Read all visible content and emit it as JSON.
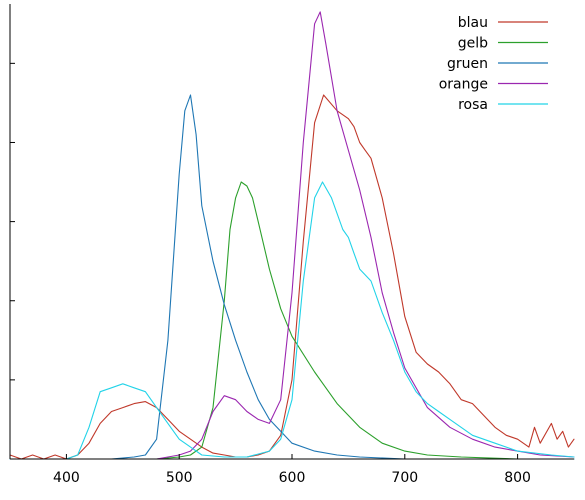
{
  "chart_data": {
    "type": "line",
    "title": "",
    "xlabel": "",
    "ylabel": "",
    "xlim": [
      350,
      850
    ],
    "ylim": [
      0,
      1.15
    ],
    "x_ticks": [
      400,
      500,
      600,
      700,
      800
    ],
    "x_tick_labels": [
      "400",
      "500",
      "600",
      "700",
      "800"
    ],
    "y_ticks": [
      0.2,
      0.4,
      0.6,
      0.8,
      1.0
    ],
    "grid": false,
    "legend_position": "top-right",
    "series": [
      {
        "name": "blau",
        "color": "#c0392b",
        "points": [
          [
            350,
            0.01
          ],
          [
            360,
            0.0
          ],
          [
            370,
            0.01
          ],
          [
            380,
            0.0
          ],
          [
            390,
            0.01
          ],
          [
            400,
            0.0
          ],
          [
            410,
            0.01
          ],
          [
            420,
            0.04
          ],
          [
            430,
            0.09
          ],
          [
            440,
            0.12
          ],
          [
            450,
            0.13
          ],
          [
            460,
            0.14
          ],
          [
            470,
            0.145
          ],
          [
            480,
            0.13
          ],
          [
            490,
            0.1
          ],
          [
            500,
            0.07
          ],
          [
            510,
            0.05
          ],
          [
            520,
            0.03
          ],
          [
            530,
            0.015
          ],
          [
            540,
            0.01
          ],
          [
            550,
            0.005
          ],
          [
            560,
            0.005
          ],
          [
            570,
            0.01
          ],
          [
            580,
            0.02
          ],
          [
            590,
            0.06
          ],
          [
            600,
            0.2
          ],
          [
            610,
            0.55
          ],
          [
            620,
            0.85
          ],
          [
            628,
            0.92
          ],
          [
            640,
            0.88
          ],
          [
            650,
            0.86
          ],
          [
            655,
            0.84
          ],
          [
            660,
            0.8
          ],
          [
            665,
            0.78
          ],
          [
            670,
            0.76
          ],
          [
            680,
            0.66
          ],
          [
            690,
            0.52
          ],
          [
            700,
            0.36
          ],
          [
            710,
            0.27
          ],
          [
            720,
            0.24
          ],
          [
            725,
            0.23
          ],
          [
            730,
            0.22
          ],
          [
            740,
            0.19
          ],
          [
            750,
            0.15
          ],
          [
            760,
            0.14
          ],
          [
            770,
            0.11
          ],
          [
            780,
            0.08
          ],
          [
            790,
            0.06
          ],
          [
            800,
            0.05
          ],
          [
            810,
            0.03
          ],
          [
            815,
            0.08
          ],
          [
            820,
            0.04
          ],
          [
            830,
            0.09
          ],
          [
            835,
            0.05
          ],
          [
            840,
            0.07
          ],
          [
            845,
            0.03
          ],
          [
            850,
            0.05
          ]
        ]
      },
      {
        "name": "gelb",
        "color": "#2ca02c",
        "points": [
          [
            350,
            0.0
          ],
          [
            400,
            0.0
          ],
          [
            450,
            0.0
          ],
          [
            480,
            0.0
          ],
          [
            500,
            0.005
          ],
          [
            510,
            0.01
          ],
          [
            520,
            0.03
          ],
          [
            530,
            0.13
          ],
          [
            540,
            0.4
          ],
          [
            545,
            0.58
          ],
          [
            550,
            0.66
          ],
          [
            555,
            0.7
          ],
          [
            560,
            0.69
          ],
          [
            565,
            0.66
          ],
          [
            570,
            0.6
          ],
          [
            580,
            0.48
          ],
          [
            590,
            0.38
          ],
          [
            600,
            0.31
          ],
          [
            620,
            0.22
          ],
          [
            640,
            0.14
          ],
          [
            660,
            0.08
          ],
          [
            680,
            0.04
          ],
          [
            700,
            0.02
          ],
          [
            720,
            0.01
          ],
          [
            750,
            0.005
          ],
          [
            800,
            0.0
          ],
          [
            850,
            0.0
          ]
        ]
      },
      {
        "name": "gruen",
        "color": "#1f77b4",
        "points": [
          [
            350,
            0.0
          ],
          [
            400,
            0.0
          ],
          [
            440,
            0.0
          ],
          [
            460,
            0.005
          ],
          [
            470,
            0.01
          ],
          [
            480,
            0.05
          ],
          [
            490,
            0.3
          ],
          [
            500,
            0.72
          ],
          [
            505,
            0.88
          ],
          [
            510,
            0.92
          ],
          [
            515,
            0.82
          ],
          [
            520,
            0.64
          ],
          [
            530,
            0.5
          ],
          [
            540,
            0.39
          ],
          [
            550,
            0.3
          ],
          [
            560,
            0.22
          ],
          [
            570,
            0.15
          ],
          [
            580,
            0.1
          ],
          [
            590,
            0.07
          ],
          [
            600,
            0.04
          ],
          [
            620,
            0.02
          ],
          [
            640,
            0.01
          ],
          [
            660,
            0.005
          ],
          [
            700,
            0.0
          ],
          [
            850,
            0.0
          ]
        ]
      },
      {
        "name": "orange",
        "color": "#9b27b0",
        "points": [
          [
            350,
            0.0
          ],
          [
            400,
            0.0
          ],
          [
            450,
            0.0
          ],
          [
            480,
            0.0
          ],
          [
            500,
            0.01
          ],
          [
            510,
            0.02
          ],
          [
            520,
            0.05
          ],
          [
            530,
            0.12
          ],
          [
            540,
            0.16
          ],
          [
            550,
            0.15
          ],
          [
            560,
            0.12
          ],
          [
            570,
            0.1
          ],
          [
            580,
            0.09
          ],
          [
            590,
            0.15
          ],
          [
            600,
            0.42
          ],
          [
            610,
            0.8
          ],
          [
            620,
            1.1
          ],
          [
            625,
            1.13
          ],
          [
            630,
            1.05
          ],
          [
            640,
            0.88
          ],
          [
            650,
            0.78
          ],
          [
            660,
            0.68
          ],
          [
            670,
            0.56
          ],
          [
            680,
            0.42
          ],
          [
            690,
            0.32
          ],
          [
            700,
            0.23
          ],
          [
            720,
            0.13
          ],
          [
            740,
            0.08
          ],
          [
            760,
            0.05
          ],
          [
            780,
            0.03
          ],
          [
            800,
            0.02
          ],
          [
            820,
            0.01
          ],
          [
            850,
            0.005
          ]
        ]
      },
      {
        "name": "rosa",
        "color": "#22d3e8",
        "points": [
          [
            350,
            0.0
          ],
          [
            400,
            0.0
          ],
          [
            410,
            0.01
          ],
          [
            420,
            0.08
          ],
          [
            430,
            0.17
          ],
          [
            440,
            0.18
          ],
          [
            450,
            0.19
          ],
          [
            460,
            0.18
          ],
          [
            470,
            0.17
          ],
          [
            480,
            0.13
          ],
          [
            490,
            0.09
          ],
          [
            500,
            0.05
          ],
          [
            510,
            0.03
          ],
          [
            520,
            0.01
          ],
          [
            540,
            0.005
          ],
          [
            560,
            0.005
          ],
          [
            580,
            0.02
          ],
          [
            590,
            0.05
          ],
          [
            600,
            0.15
          ],
          [
            610,
            0.45
          ],
          [
            620,
            0.66
          ],
          [
            627,
            0.7
          ],
          [
            635,
            0.66
          ],
          [
            645,
            0.58
          ],
          [
            650,
            0.56
          ],
          [
            655,
            0.52
          ],
          [
            660,
            0.48
          ],
          [
            670,
            0.45
          ],
          [
            680,
            0.37
          ],
          [
            690,
            0.3
          ],
          [
            700,
            0.22
          ],
          [
            710,
            0.17
          ],
          [
            720,
            0.14
          ],
          [
            730,
            0.12
          ],
          [
            740,
            0.1
          ],
          [
            760,
            0.06
          ],
          [
            780,
            0.04
          ],
          [
            800,
            0.02
          ],
          [
            830,
            0.01
          ],
          [
            850,
            0.005
          ]
        ]
      }
    ]
  }
}
